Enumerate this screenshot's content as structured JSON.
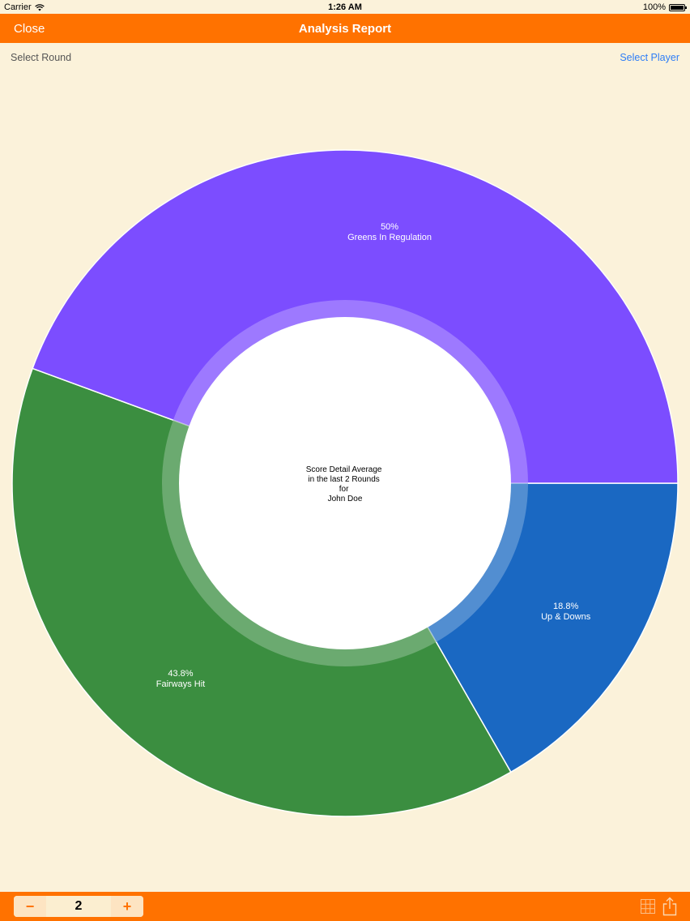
{
  "status_bar": {
    "carrier": "Carrier",
    "time": "1:26 AM",
    "battery": "100%"
  },
  "nav": {
    "close": "Close",
    "title": "Analysis Report"
  },
  "subbar": {
    "select_round": "Select Round",
    "select_player": "Select Player"
  },
  "chart_data": {
    "type": "pie",
    "slices": [
      {
        "label": "Up & Downs",
        "percent_label": "18.8%",
        "value": 18.8,
        "color": "#1a68c2"
      },
      {
        "label": "Fairways Hit",
        "percent_label": "43.8%",
        "value": 43.8,
        "color": "#3b8e40"
      },
      {
        "label": "Greens In Regulation",
        "percent_label": "50%",
        "value": 50,
        "color": "#7c4dff"
      }
    ],
    "center_text": [
      "Score Detail Average",
      "in the last 2 Rounds",
      "for",
      "John Doe"
    ]
  },
  "stepper": {
    "minus": "−",
    "value": "2",
    "plus": "+"
  },
  "toolbar": {
    "grid_icon": "grid-icon",
    "share_icon": "share-icon"
  }
}
